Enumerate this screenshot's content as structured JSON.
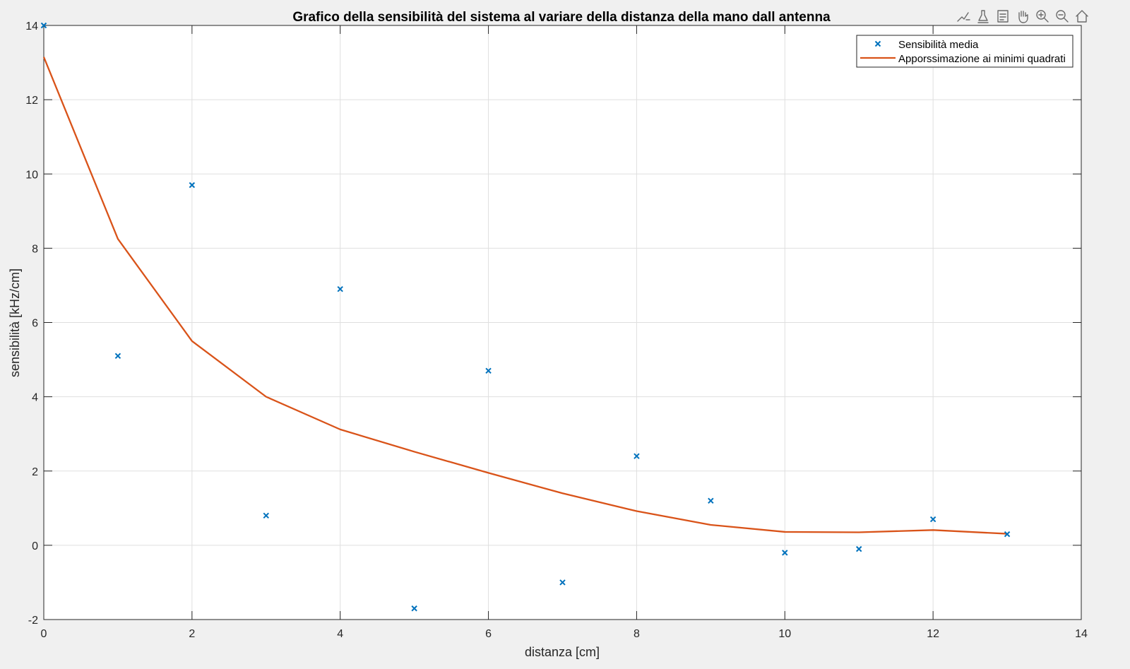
{
  "toolbar": {
    "icons": [
      "brush-data-icon",
      "data-tips-icon",
      "restore-view-icon",
      "pan-hand-icon",
      "zoom-in-icon",
      "zoom-out-icon",
      "home-icon"
    ]
  },
  "colors": {
    "background": "#f0f0f0",
    "axes_bg": "#ffffff",
    "grid": "#dfdfdf",
    "scatter": "#0072bd",
    "fit_line": "#d95319"
  },
  "chart_data": {
    "type": "scatter",
    "title": "Grafico della sensibilità del sistema al variare della distanza della mano dall antenna",
    "xlabel": "distanza [cm]",
    "ylabel": "sensibilità [kHz/cm]",
    "xlim": [
      0,
      14
    ],
    "ylim": [
      -2,
      14
    ],
    "xticks": [
      0,
      2,
      4,
      6,
      8,
      10,
      12,
      14
    ],
    "yticks": [
      -2,
      0,
      2,
      4,
      6,
      8,
      10,
      12,
      14
    ],
    "grid": true,
    "legend_position": "top-right",
    "series": [
      {
        "name": "Sensibilità media",
        "type": "scatter",
        "marker": "x",
        "x": [
          0,
          1,
          2,
          3,
          4,
          5,
          6,
          7,
          8,
          9,
          10,
          11,
          12,
          13
        ],
        "y": [
          14.0,
          5.1,
          9.7,
          0.8,
          6.9,
          -1.7,
          4.7,
          -1.0,
          2.4,
          1.2,
          -0.2,
          -0.1,
          0.7,
          0.3
        ]
      },
      {
        "name": "Apporssimazione ai minimi quadrati",
        "type": "line",
        "x": [
          0,
          1,
          2,
          3,
          4,
          5,
          6,
          7,
          8,
          9,
          10,
          11,
          12,
          13
        ],
        "y": [
          13.15,
          8.25,
          5.5,
          4.0,
          3.12,
          2.52,
          1.95,
          1.4,
          0.92,
          0.55,
          0.36,
          0.35,
          0.41,
          0.31
        ]
      }
    ]
  }
}
